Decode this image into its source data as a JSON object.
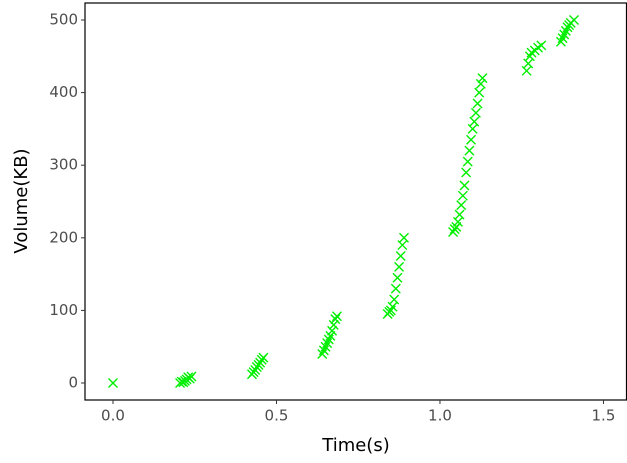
{
  "chart_data": {
    "type": "scatter",
    "x_label": "Time(s)",
    "y_label": "Volume(KB)",
    "marker": "x",
    "color": "#00ee00",
    "grid": false,
    "xlim": [
      -0.0856,
      1.572
    ],
    "ylim": [
      -23.4,
      523.4
    ],
    "xticks": [
      {
        "value": 0,
        "label": "0.0"
      },
      0.5,
      {
        "value": 1,
        "label": "1.0"
      },
      1.5
    ],
    "yticks": [
      0,
      100,
      200,
      300,
      400,
      500
    ],
    "x": [
      0.0,
      0.205,
      0.21,
      0.215,
      0.22,
      0.225,
      0.23,
      0.235,
      0.24,
      0.425,
      0.43,
      0.435,
      0.44,
      0.445,
      0.45,
      0.455,
      0.46,
      0.64,
      0.645,
      0.65,
      0.655,
      0.66,
      0.665,
      0.67,
      0.675,
      0.68,
      0.685,
      0.84,
      0.845,
      0.85,
      0.855,
      0.86,
      0.865,
      0.87,
      0.875,
      0.88,
      0.885,
      0.89,
      1.04,
      1.045,
      1.05,
      1.055,
      1.06,
      1.065,
      1.07,
      1.075,
      1.08,
      1.085,
      1.09,
      1.095,
      1.1,
      1.105,
      1.11,
      1.115,
      1.12,
      1.125,
      1.13,
      1.265,
      1.27,
      1.275,
      1.28,
      1.29,
      1.3,
      1.31,
      1.37,
      1.375,
      1.38,
      1.385,
      1.39,
      1.395,
      1.4,
      1.41
    ],
    "y": [
      0,
      0,
      2,
      1,
      3,
      5,
      8,
      6,
      9,
      12,
      15,
      18,
      22,
      25,
      28,
      32,
      35,
      40,
      45,
      50,
      55,
      60,
      65,
      72,
      80,
      88,
      92,
      95,
      98,
      100,
      105,
      115,
      130,
      145,
      160,
      175,
      190,
      200,
      208,
      212,
      215,
      222,
      232,
      245,
      258,
      272,
      290,
      305,
      320,
      335,
      350,
      360,
      372,
      385,
      400,
      412,
      420,
      430,
      440,
      450,
      455,
      458,
      462,
      465,
      470,
      475,
      480,
      485,
      490,
      493,
      496,
      500
    ]
  }
}
